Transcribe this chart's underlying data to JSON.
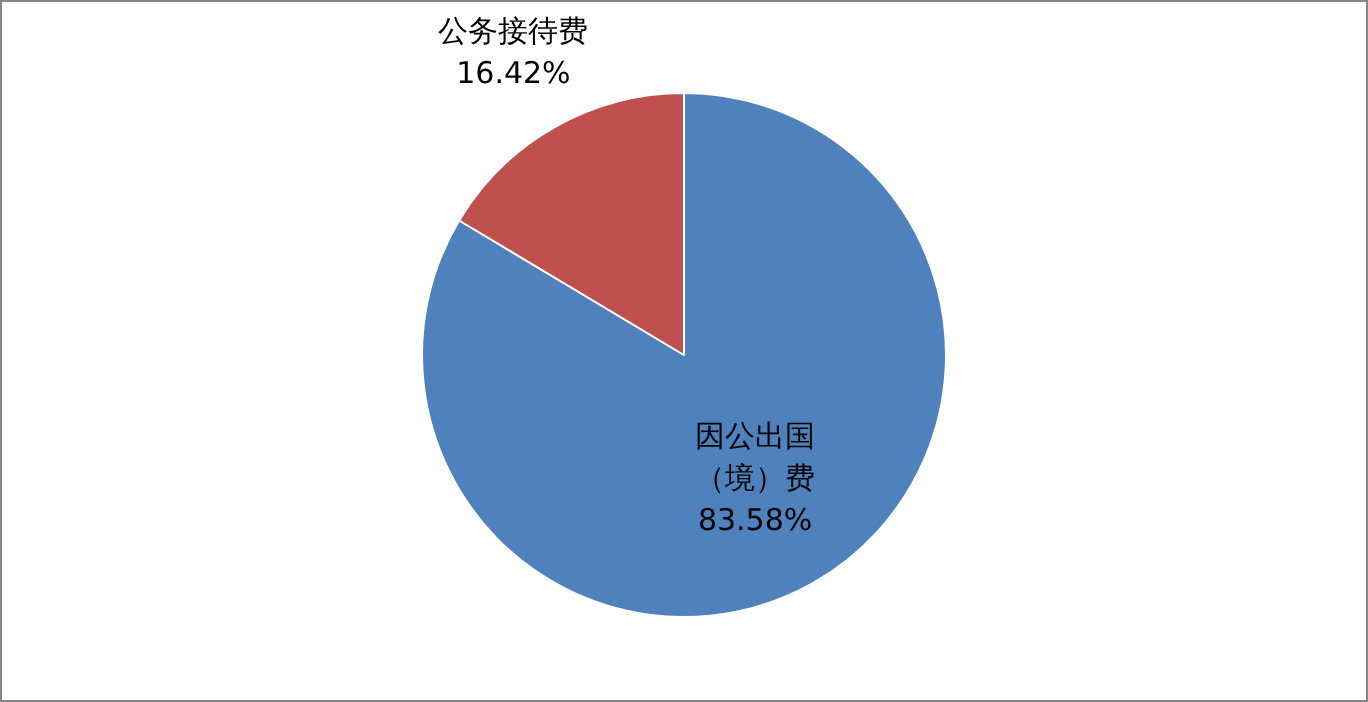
{
  "chart_data": {
    "type": "pie",
    "categories": [
      "因公出国（境）费",
      "公务接待费"
    ],
    "values": [
      83.58,
      16.42
    ],
    "value_labels": [
      "83.58%",
      "16.42%"
    ],
    "colors": [
      "#4f81bd",
      "#c0504d"
    ],
    "legend": false
  }
}
